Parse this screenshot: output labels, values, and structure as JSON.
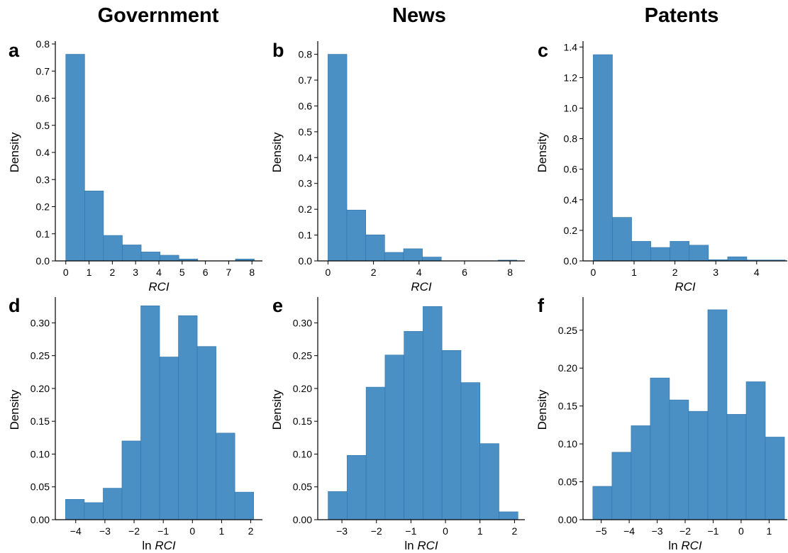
{
  "columns": [
    "Government",
    "News",
    "Patents"
  ],
  "chart_data": [
    {
      "panel": "a",
      "type": "bar",
      "ylabel": "Density",
      "xlabel": "RCI",
      "bin_edges": [
        0,
        0.81,
        1.62,
        2.43,
        3.24,
        4.05,
        4.86,
        5.67,
        6.48,
        7.29,
        8.1
      ],
      "values": [
        0.762,
        0.258,
        0.094,
        0.059,
        0.033,
        0.021,
        0.007,
        0.0,
        0.0,
        0.007
      ],
      "xlim": [
        -0.45,
        8.45
      ],
      "ylim": [
        0,
        0.8
      ],
      "xticks": [
        0,
        1,
        2,
        3,
        4,
        5,
        6,
        7,
        8
      ],
      "xtick_labels": [
        "0",
        "1",
        "2",
        "3",
        "4",
        "5",
        "6",
        "7",
        "8"
      ],
      "yticks": [
        0,
        0.1,
        0.2,
        0.3,
        0.4,
        0.5,
        0.6,
        0.7,
        0.8
      ],
      "ytick_labels": [
        "0.0",
        "0.1",
        "0.2",
        "0.3",
        "0.4",
        "0.5",
        "0.6",
        "0.7",
        "0.8"
      ]
    },
    {
      "panel": "b",
      "type": "bar",
      "ylabel": "Density",
      "xlabel": "RCI",
      "bin_edges": [
        0,
        0.83,
        1.66,
        2.49,
        3.32,
        4.15,
        4.98,
        5.81,
        6.64,
        7.47,
        8.3
      ],
      "values": [
        0.8,
        0.197,
        0.101,
        0.033,
        0.047,
        0.015,
        0.0,
        0.0,
        0.0,
        0.003
      ],
      "xlim": [
        -0.45,
        8.65
      ],
      "ylim": [
        0,
        0.84
      ],
      "xticks": [
        0,
        2,
        4,
        6,
        8
      ],
      "xtick_labels": [
        "0",
        "2",
        "4",
        "6",
        "8"
      ],
      "yticks": [
        0,
        0.1,
        0.2,
        0.3,
        0.4,
        0.5,
        0.6,
        0.7,
        0.8
      ],
      "ytick_labels": [
        "0.0",
        "0.1",
        "0.2",
        "0.3",
        "0.4",
        "0.5",
        "0.6",
        "0.7",
        "0.8"
      ]
    },
    {
      "panel": "c",
      "type": "bar",
      "ylabel": "Density",
      "xlabel": "RCI",
      "bin_edges": [
        0,
        0.47,
        0.94,
        1.41,
        1.88,
        2.35,
        2.82,
        3.29,
        3.76,
        4.23,
        4.7
      ],
      "values": [
        1.35,
        0.285,
        0.128,
        0.088,
        0.128,
        0.103,
        0.008,
        0.027,
        0.006,
        0.006
      ],
      "xlim": [
        -0.25,
        4.75
      ],
      "ylim": [
        0,
        1.42
      ],
      "xticks": [
        0,
        1,
        2,
        3,
        4
      ],
      "xtick_labels": [
        "0",
        "1",
        "2",
        "3",
        "4"
      ],
      "yticks": [
        0,
        0.2,
        0.4,
        0.6,
        0.8,
        1.0,
        1.2,
        1.4
      ],
      "ytick_labels": [
        "0.0",
        "0.2",
        "0.4",
        "0.6",
        "0.8",
        "1.0",
        "1.2",
        "1.4"
      ]
    },
    {
      "panel": "d",
      "type": "bar",
      "ylabel": "Density",
      "xlabel": "ln RCI",
      "bin_edges": [
        -4.35,
        -3.705,
        -3.06,
        -2.415,
        -1.77,
        -1.125,
        -0.48,
        0.165,
        0.81,
        1.455,
        2.1
      ],
      "values": [
        0.031,
        0.026,
        0.048,
        0.12,
        0.326,
        0.248,
        0.311,
        0.264,
        0.132,
        0.042
      ],
      "xlim": [
        -4.7,
        2.4
      ],
      "ylim": [
        0,
        0.335
      ],
      "xticks": [
        -4,
        -3,
        -2,
        -1,
        0,
        1,
        2
      ],
      "xtick_labels": [
        "−4",
        "−3",
        "−2",
        "−1",
        "0",
        "1",
        "2"
      ],
      "yticks": [
        0,
        0.05,
        0.1,
        0.15,
        0.2,
        0.25,
        0.3
      ],
      "ytick_labels": [
        "0.00",
        "0.05",
        "0.10",
        "0.15",
        "0.20",
        "0.25",
        "0.30"
      ]
    },
    {
      "panel": "e",
      "type": "bar",
      "ylabel": "Density",
      "xlabel": "ln RCI",
      "bin_edges": [
        -3.4,
        -2.85,
        -2.3,
        -1.75,
        -1.2,
        -0.65,
        -0.1,
        0.45,
        1.0,
        1.55,
        2.1
      ],
      "values": [
        0.043,
        0.098,
        0.202,
        0.251,
        0.287,
        0.325,
        0.258,
        0.209,
        0.116,
        0.012
      ],
      "xlim": [
        -3.7,
        2.3
      ],
      "ylim": [
        0,
        0.335
      ],
      "xticks": [
        -3,
        -2,
        -1,
        0,
        1,
        2
      ],
      "xtick_labels": [
        "−3",
        "−2",
        "−1",
        "0",
        "1",
        "2"
      ],
      "yticks": [
        0,
        0.05,
        0.1,
        0.15,
        0.2,
        0.25,
        0.3
      ],
      "ytick_labels": [
        "0.00",
        "0.05",
        "0.10",
        "0.15",
        "0.20",
        "0.25",
        "0.30"
      ]
    },
    {
      "panel": "f",
      "type": "bar",
      "ylabel": "Density",
      "xlabel": "ln RCI",
      "bin_edges": [
        -5.3,
        -4.615,
        -3.93,
        -3.245,
        -2.56,
        -1.875,
        -1.19,
        -0.505,
        0.18,
        0.865,
        1.55
      ],
      "values": [
        0.044,
        0.089,
        0.124,
        0.187,
        0.158,
        0.143,
        0.277,
        0.139,
        0.182,
        0.109
      ],
      "xlim": [
        -5.65,
        1.65
      ],
      "ylim": [
        0,
        0.29
      ],
      "xticks": [
        -5,
        -4,
        -3,
        -2,
        -1,
        0,
        1
      ],
      "xtick_labels": [
        "−5",
        "−4",
        "−3",
        "−2",
        "−1",
        "0",
        "1"
      ],
      "yticks": [
        0,
        0.05,
        0.1,
        0.15,
        0.2,
        0.25
      ],
      "ytick_labels": [
        "0.00",
        "0.05",
        "0.10",
        "0.15",
        "0.20",
        "0.25"
      ]
    }
  ],
  "colors": {
    "bar": "#4a90c4",
    "bar_edge": "#2f74ab",
    "axis": "#000000"
  }
}
